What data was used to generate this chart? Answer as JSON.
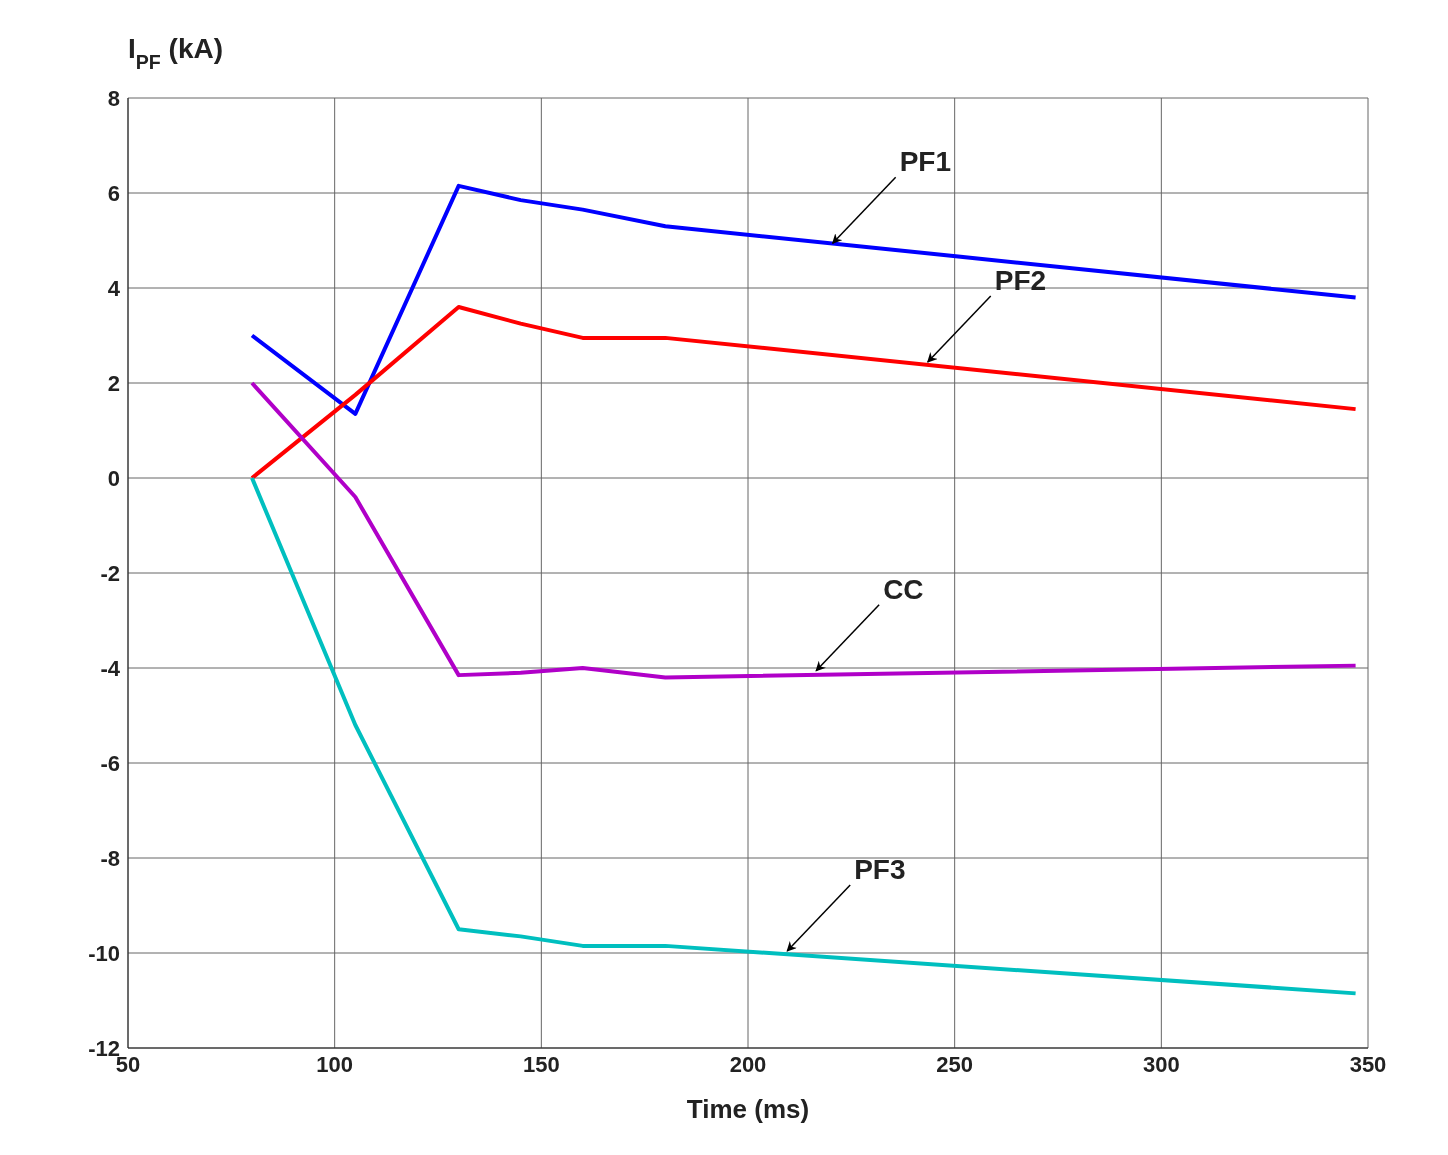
{
  "chart_data": {
    "type": "line",
    "ylabel": "I$_{PF}$ (kA)",
    "xlabel": "Time (ms)",
    "xlim": [
      50,
      350
    ],
    "xticks": [
      50,
      100,
      150,
      200,
      250,
      300,
      350
    ],
    "ylim": [
      -12,
      8
    ],
    "yticks": [
      -12,
      -10,
      -8,
      -6,
      -4,
      -2,
      0,
      2,
      4,
      6,
      8
    ],
    "grid": true,
    "marker": "none",
    "line_style": "solid",
    "series": [
      {
        "color": "#0000ff",
        "x": [
          80,
          105,
          130,
          145,
          160,
          180,
          347
        ],
        "values": [
          3.0,
          1.35,
          6.15,
          5.85,
          5.65,
          5.3,
          3.8
        ]
      },
      {
        "color": "#ff0000",
        "x": [
          80,
          105,
          130,
          145,
          160,
          180,
          347
        ],
        "values": [
          0,
          1.75,
          3.6,
          3.25,
          2.95,
          2.95,
          1.45
        ]
      },
      {
        "color": "#b000c8",
        "x": [
          80,
          105,
          130,
          145,
          160,
          180,
          347
        ],
        "values": [
          2.0,
          -0.4,
          -4.15,
          -4.1,
          -4.0,
          -4.2,
          -3.95
        ]
      },
      {
        "color": "#00bfbf",
        "x": [
          80,
          105,
          130,
          145,
          160,
          180,
          347
        ],
        "values": [
          0,
          -5.2,
          -9.5,
          -9.65,
          -9.85,
          -9.85,
          -10.85
        ]
      }
    ],
    "annotations": [
      {
        "text": "PF1",
        "x": 220,
        "y": 4.9
      },
      {
        "text": "PF2",
        "x": 243,
        "y": 2.4
      },
      {
        "text": "CC",
        "x": 216,
        "y": -4.1
      },
      {
        "text": "PF3",
        "x": 209,
        "y": -10.0
      }
    ]
  }
}
